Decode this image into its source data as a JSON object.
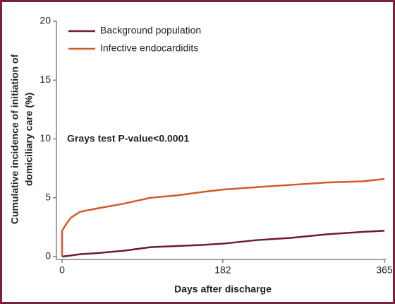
{
  "chart_data": {
    "type": "line",
    "xlabel": "Days after discharge",
    "ylabel": [
      "Cumulative incidence of initiation of",
      "domiciliary care (%)"
    ],
    "annotation": "Grays test P-value<0.0001",
    "x": [
      0,
      0,
      5,
      10,
      20,
      40,
      70,
      100,
      130,
      160,
      182,
      220,
      260,
      300,
      340,
      365
    ],
    "series": [
      {
        "name": "Background population",
        "color": "#6b1a3a",
        "values": [
          0,
          0,
          0.05,
          0.1,
          0.2,
          0.3,
          0.5,
          0.8,
          0.9,
          1.0,
          1.1,
          1.4,
          1.6,
          1.9,
          2.1,
          2.2
        ]
      },
      {
        "name": "Infective endocardidits",
        "color": "#d4592a",
        "values": [
          0,
          2.2,
          2.8,
          3.3,
          3.8,
          4.1,
          4.5,
          5.0,
          5.2,
          5.5,
          5.7,
          5.9,
          6.1,
          6.3,
          6.4,
          6.6
        ]
      }
    ],
    "xlim": [
      0,
      365
    ],
    "xticks": [
      0,
      182,
      365
    ],
    "ylim": [
      0,
      20
    ],
    "yticks": [
      0,
      5,
      10,
      15,
      20
    ],
    "legend": "top-left"
  }
}
